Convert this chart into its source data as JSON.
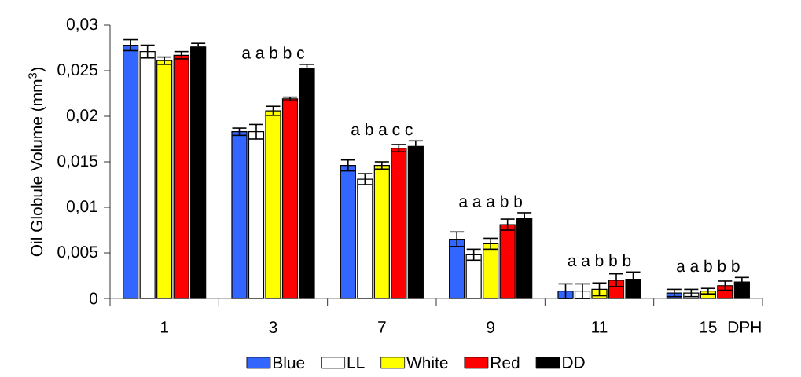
{
  "chart_data": {
    "type": "bar",
    "ylabel": "Oil Globule Volume (mm$^{3}$)",
    "xlabel": "DPH",
    "categories": [
      "1",
      "3",
      "7",
      "9",
      "11",
      "15"
    ],
    "series": [
      {
        "name": "Blue",
        "color": "#3366ff",
        "values": [
          0.0278,
          0.0183,
          0.0146,
          0.0065,
          0.0008,
          0.0006
        ],
        "errors": [
          0.0006,
          0.0004,
          0.0006,
          0.0008,
          0.0008,
          0.0004
        ]
      },
      {
        "name": "LL",
        "color": "#ffffff",
        "values": [
          0.0271,
          0.0183,
          0.0131,
          0.0048,
          0.0008,
          0.0006
        ],
        "errors": [
          0.0007,
          0.0008,
          0.0006,
          0.0006,
          0.0008,
          0.0004
        ]
      },
      {
        "name": "White",
        "color": "#ffff00",
        "values": [
          0.0261,
          0.0206,
          0.0146,
          0.006,
          0.001,
          0.0008
        ],
        "errors": [
          0.0004,
          0.0005,
          0.0004,
          0.0006,
          0.0007,
          0.0003
        ]
      },
      {
        "name": "Red",
        "color": "#ff0000",
        "values": [
          0.0267,
          0.0219,
          0.0165,
          0.0081,
          0.002,
          0.0014
        ],
        "errors": [
          0.0004,
          0.0002,
          0.0004,
          0.0006,
          0.0007,
          0.0005
        ]
      },
      {
        "name": "DD",
        "color": "#000000",
        "values": [
          0.0276,
          0.0253,
          0.0167,
          0.0088,
          0.0021,
          0.0018
        ],
        "errors": [
          0.0004,
          0.0004,
          0.0006,
          0.0006,
          0.0008,
          0.0005
        ]
      }
    ],
    "ylim": [
      0,
      0.03
    ],
    "yticks": [
      0,
      {
        "value": 0.005,
        "label": "0,005"
      },
      {
        "value": 0.01,
        "label": "0,01"
      },
      {
        "value": 0.015,
        "label": "0,015"
      },
      {
        "value": 0.02,
        "label": "0,02"
      },
      {
        "value": 0.025,
        "label": "0,025"
      },
      {
        "value": 0.03,
        "label": "0,03"
      }
    ],
    "annotations": [
      "a a b b c",
      "a b a c c",
      "a a a b b",
      "a a b b b",
      "a a b b b"
    ],
    "grid": false,
    "legend": "bottom"
  }
}
